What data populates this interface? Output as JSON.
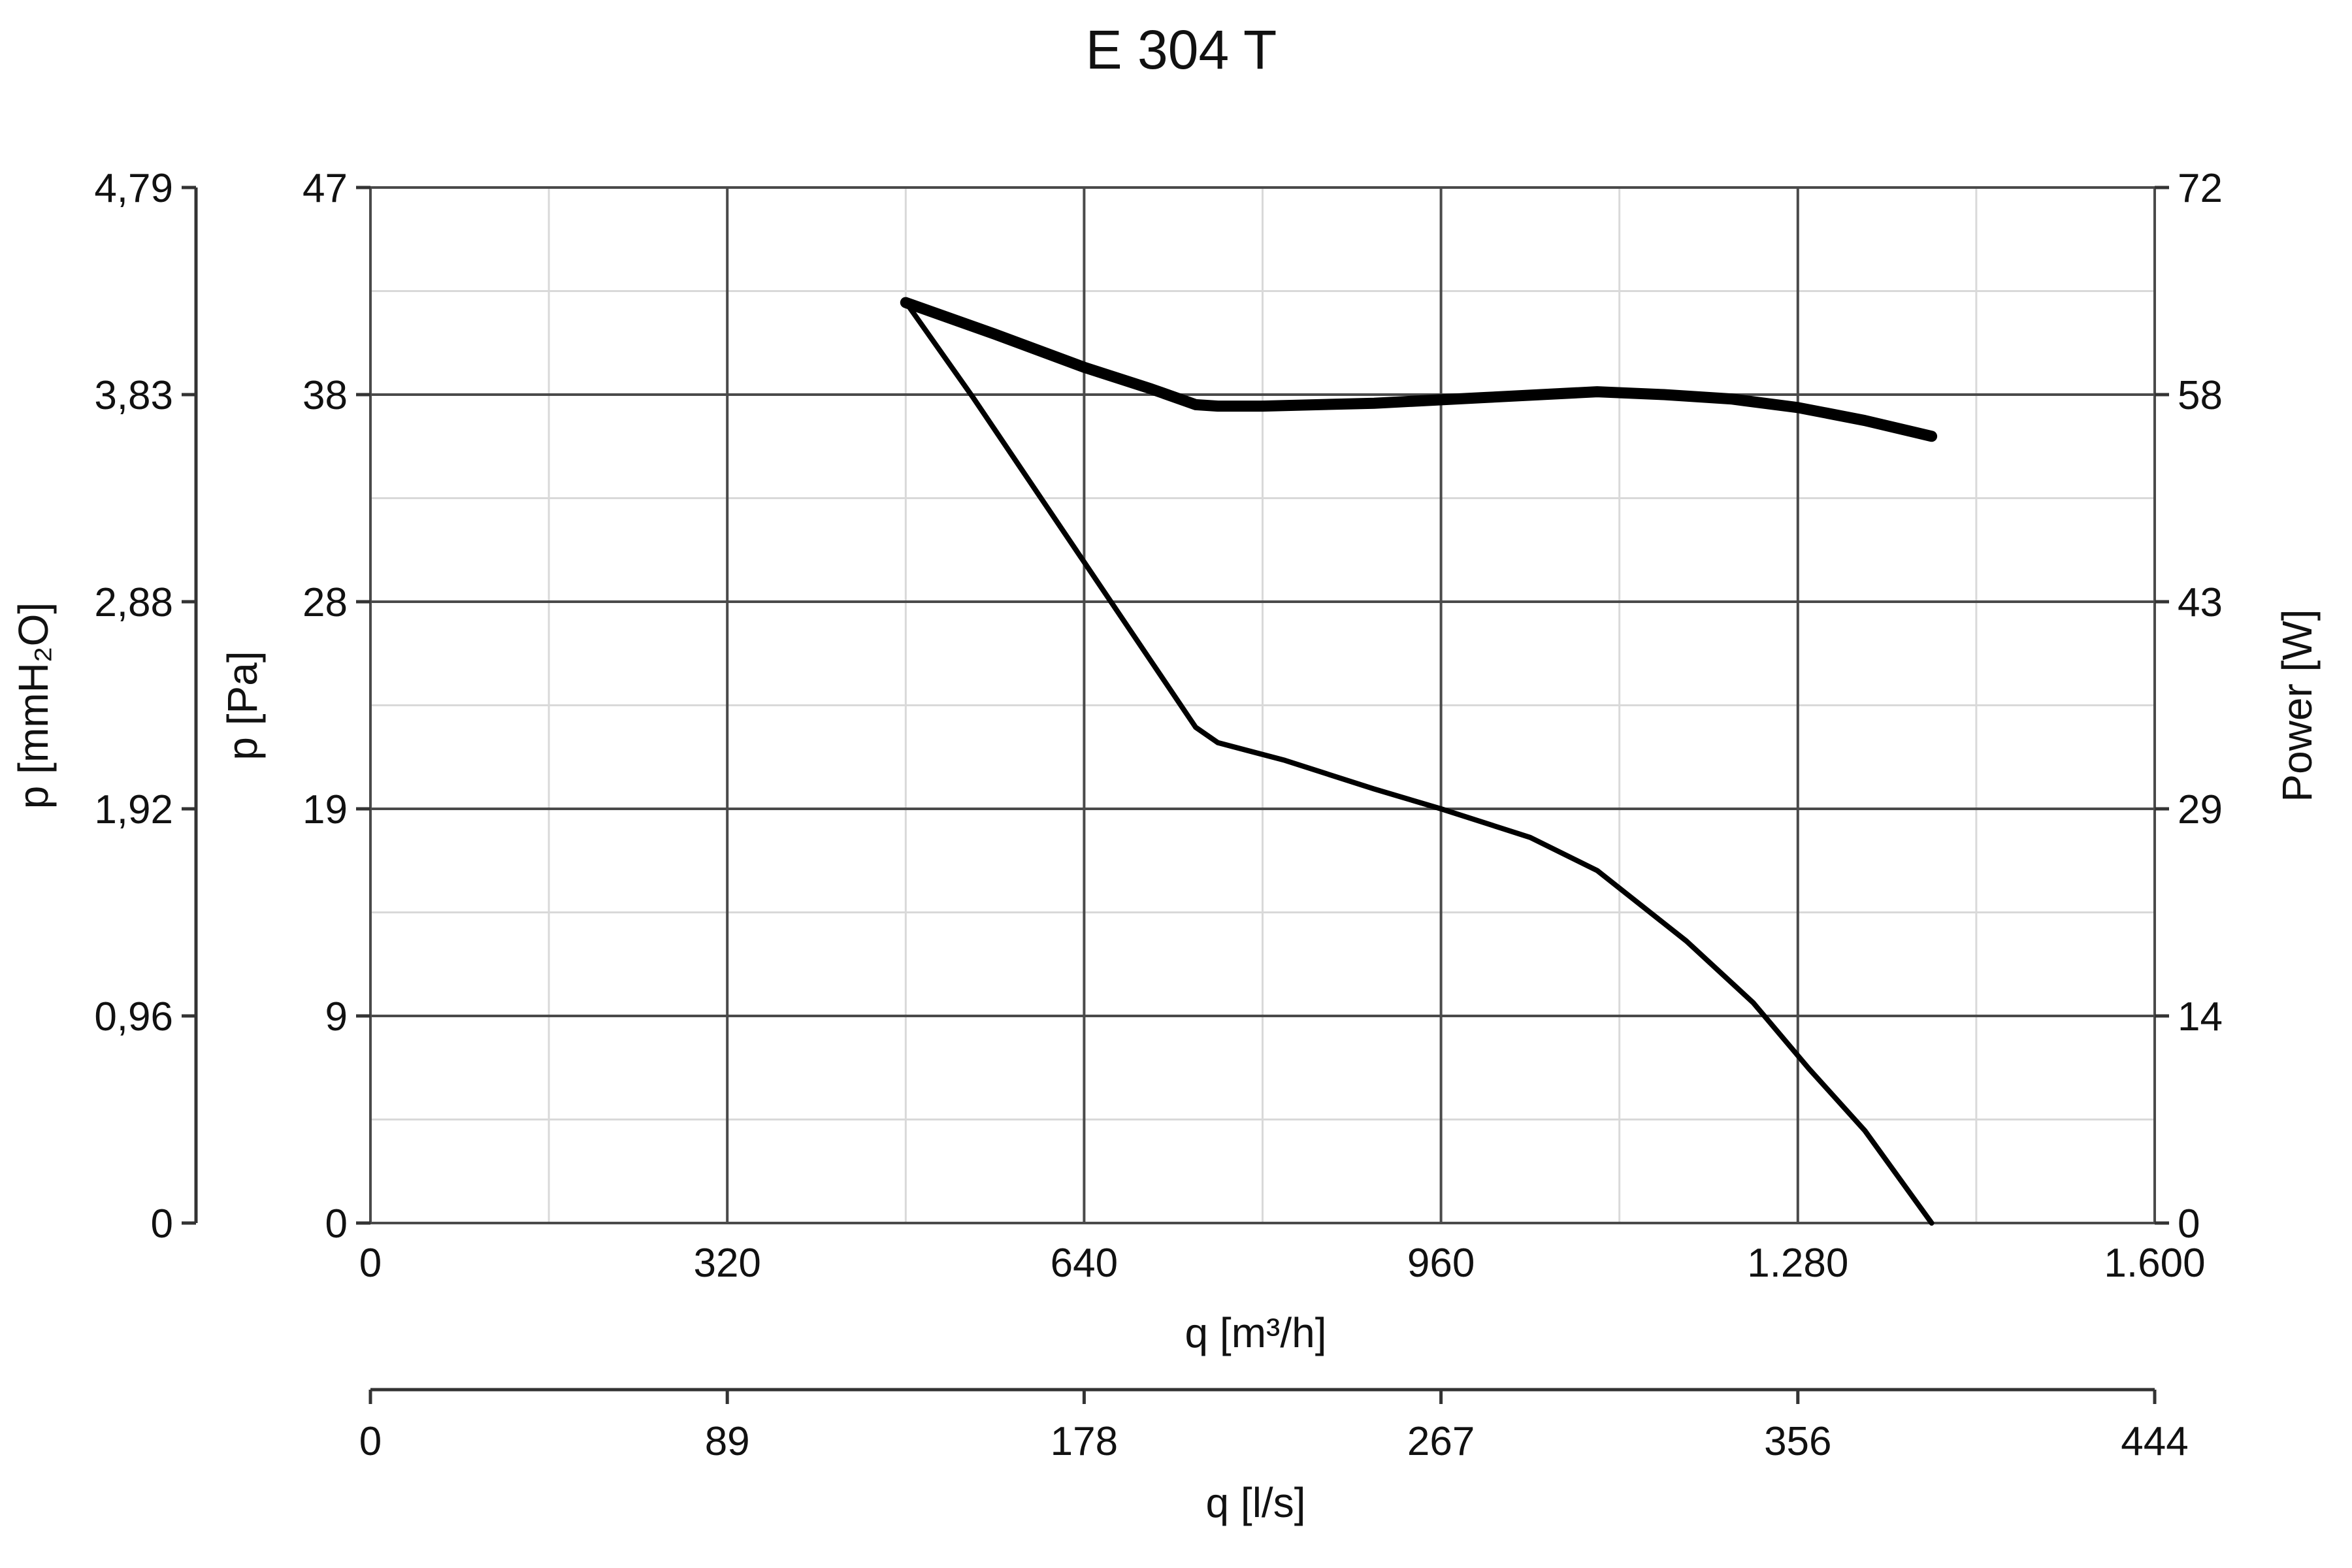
{
  "chart_data": {
    "type": "line",
    "title": "E 304 T",
    "xlabel": "q [m³/h]",
    "xlim": [
      0,
      1600
    ],
    "x_ticks": [
      "0",
      "320",
      "640",
      "960",
      "1.280",
      "1.600"
    ],
    "x2label": "q [l/s]",
    "x2_ticks": [
      "0",
      "89",
      "178",
      "267",
      "356",
      "444"
    ],
    "ylabel": "p [Pa]",
    "ylim": [
      0,
      47
    ],
    "y_ticks": [
      "0",
      "9",
      "19",
      "28",
      "38",
      "47"
    ],
    "y_outer_label": "p [mmH₂O]",
    "y_outer_ticks": [
      "0",
      "0,96",
      "1,92",
      "2,88",
      "3,83",
      "4,79"
    ],
    "y_right_label": "Power [W]",
    "y_right_ticks": [
      "0",
      "14",
      "29",
      "43",
      "58",
      "72"
    ],
    "grid": true,
    "series": [
      {
        "axis": "left",
        "x": [
          480,
          540,
          600,
          640,
          680,
          720,
          740,
          760,
          820,
          900,
          960,
          1040,
          1100,
          1130,
          1180,
          1240,
          1290,
          1340,
          1400
        ],
        "values": [
          41.8,
          37.5,
          33.0,
          30.0,
          27.0,
          24.0,
          22.5,
          21.8,
          21.0,
          19.7,
          18.8,
          17.5,
          16.0,
          14.8,
          12.8,
          10.0,
          7.0,
          4.2,
          0.0
        ]
      },
      {
        "axis": "right",
        "x": [
          480,
          560,
          640,
          700,
          740,
          760,
          800,
          900,
          1000,
          1100,
          1160,
          1220,
          1280,
          1340,
          1400
        ],
        "values": [
          64.0,
          61.8,
          59.5,
          58.0,
          56.9,
          56.8,
          56.8,
          57.0,
          57.4,
          57.8,
          57.6,
          57.3,
          56.7,
          55.8,
          54.7
        ]
      }
    ]
  }
}
